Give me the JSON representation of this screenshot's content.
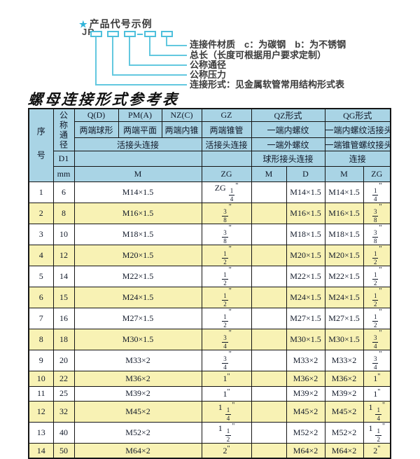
{
  "diagram": {
    "star": "★",
    "title": "产品代号示例",
    "prefix": "JR",
    "labels": [
      "连接件材质　c：为碳钢　b：为不锈钢",
      "总长（长度可根据用户要求定制）",
      "公称通径",
      "公称压力",
      "连接形式：见金属软管常用结构形式表"
    ]
  },
  "table": {
    "title": "螺母连接形式参考表",
    "header": {
      "serial": "序号",
      "diameter": "公称通径",
      "d1": "D1",
      "mm": "mm",
      "q": {
        "name": "Q(D)",
        "desc": "两端球形"
      },
      "pm": {
        "name": "PM(A)",
        "desc": "两端平面"
      },
      "nz": {
        "name": "NZ(C)",
        "desc": "两端内锥"
      },
      "gz": {
        "name": "GZ",
        "desc": "两端锥管",
        "row3": "活接头连接",
        "unit": "ZG"
      },
      "qz": {
        "name": "QZ形式",
        "desc": "一端内螺纹",
        "row3": "一端外螺纹",
        "row4": "球形接头连接",
        "unit1": "M",
        "unit2": "D"
      },
      "qg": {
        "name": "QG形式",
        "desc": "一端内螺纹活接头",
        "row3": "一端锥管螺纹接头",
        "row4": "连接",
        "unit1": "M",
        "unit2": "ZG"
      },
      "joint": "活接头连接",
      "m_unit": "M"
    },
    "rows": [
      {
        "no": "1",
        "mm": "6",
        "m": "M14×1.5",
        "zg": "ZG 1/4\"",
        "qz_m": "",
        "qz_d": "M14×1.5",
        "qg_m": "M14×1.5",
        "qg_zg": "1/4\""
      },
      {
        "no": "2",
        "mm": "8",
        "m": "M16×1.5",
        "zg": "3/8\"",
        "qz_m": "",
        "qz_d": "M16×1.5",
        "qg_m": "M16×1.5",
        "qg_zg": "3/8\""
      },
      {
        "no": "3",
        "mm": "10",
        "m": "M18×1.5",
        "zg": "3/8\"",
        "qz_m": "",
        "qz_d": "M18×1.5",
        "qg_m": "M18×1.5",
        "qg_zg": "3/8\""
      },
      {
        "no": "4",
        "mm": "12",
        "m": "M20×1.5",
        "zg": "1/2\"",
        "qz_m": "",
        "qz_d": "M20×1.5",
        "qg_m": "M20×1.5",
        "qg_zg": "1/2\""
      },
      {
        "no": "5",
        "mm": "14",
        "m": "M22×1.5",
        "zg": "1/2\"",
        "qz_m": "",
        "qz_d": "M22×1.5",
        "qg_m": "M22×1.5",
        "qg_zg": "1/2\""
      },
      {
        "no": "6",
        "mm": "15",
        "m": "M24×1.5",
        "zg": "1/2\"",
        "qz_m": "",
        "qz_d": "M24×1.5",
        "qg_m": "M24×1.5",
        "qg_zg": "1/2\""
      },
      {
        "no": "7",
        "mm": "16",
        "m": "M27×1.5",
        "zg": "1/2\"",
        "qz_m": "",
        "qz_d": "M27×1.5",
        "qg_m": "M27×1.5",
        "qg_zg": "1/2\""
      },
      {
        "no": "8",
        "mm": "18",
        "m": "M30×1.5",
        "zg": "3/4\"",
        "qz_m": "",
        "qz_d": "M30×1.5",
        "qg_m": "M30×1.5",
        "qg_zg": "3/4\""
      },
      {
        "no": "9",
        "mm": "20",
        "m": "M33×2",
        "zg": "3/4\"",
        "qz_m": "",
        "qz_d": "M33×2",
        "qg_m": "M33×2",
        "qg_zg": "3/4\""
      },
      {
        "no": "10",
        "mm": "22",
        "m": "M36×2",
        "zg": "1\"",
        "qz_m": "",
        "qz_d": "M36×2",
        "qg_m": "M36×2",
        "qg_zg": "1\""
      },
      {
        "no": "11",
        "mm": "25",
        "m": "M39×2",
        "zg": "1\"",
        "qz_m": "",
        "qz_d": "M39×2",
        "qg_m": "M39×2",
        "qg_zg": "1\""
      },
      {
        "no": "12",
        "mm": "32",
        "m": "M45×2",
        "zg": "1 1/4\"",
        "qz_m": "",
        "qz_d": "M45×2",
        "qg_m": "M45×2",
        "qg_zg": "1 1/4\""
      },
      {
        "no": "13",
        "mm": "40",
        "m": "M52×2",
        "zg": "1 1/2\"",
        "qz_m": "",
        "qz_d": "M52×2",
        "qg_m": "M52×2",
        "qg_zg": "1 1/2\""
      },
      {
        "no": "14",
        "mm": "50",
        "m": "M64×2",
        "zg": "2\"",
        "qz_m": "",
        "qz_d": "M64×2",
        "qg_m": "M64×2",
        "qg_zg": "2\""
      }
    ]
  },
  "colors": {
    "accent_cyan": "#4fc0dc",
    "header_blue": "#a9d4e5",
    "row_yellow": "#f8f2b4",
    "border_black": "#151515"
  }
}
